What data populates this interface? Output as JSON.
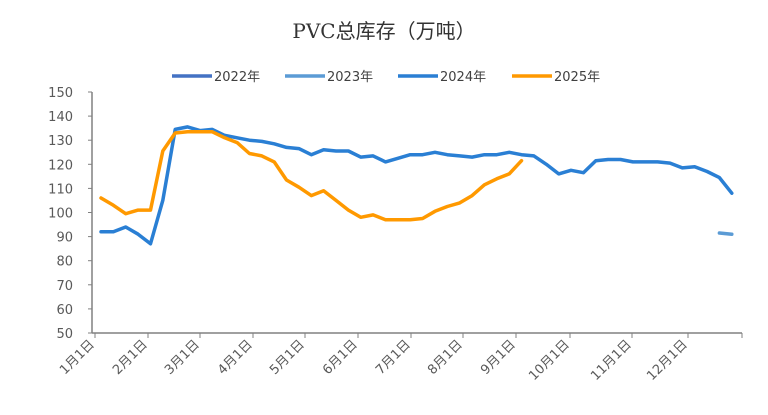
{
  "chart_data": {
    "type": "line",
    "title": "PVC总库存（万吨）",
    "xlabel": "",
    "ylabel": "",
    "ylim": [
      50,
      150
    ],
    "yticks": [
      50,
      60,
      70,
      80,
      90,
      100,
      110,
      120,
      130,
      140,
      150
    ],
    "xtick_labels": [
      "1月1日",
      "2月1日",
      "3月1日",
      "4月1日",
      "5月1日",
      "6月1日",
      "7月1日",
      "8月1日",
      "9月1日",
      "10月1日",
      "11月1日",
      "12月1日"
    ],
    "x_unit": "week of year (0-51)",
    "legend_position": "top",
    "grid": false,
    "series": [
      {
        "name": "2022年",
        "color": "#4472C4",
        "dashed": false,
        "start_week": 0,
        "values": []
      },
      {
        "name": "2023年",
        "color": "#5B9BD5",
        "dashed": true,
        "start_week": 50,
        "values": [
          91.5,
          91
        ]
      },
      {
        "name": "2024年",
        "color": "#2A7FD4",
        "dashed": false,
        "start_week": 0,
        "values": [
          92,
          92,
          94,
          91,
          87,
          105,
          134.5,
          135.5,
          134,
          134.5,
          132,
          131,
          130,
          129.5,
          128.5,
          127,
          126.5,
          124,
          126,
          125.5,
          125.5,
          123,
          123.5,
          121,
          122.5,
          124,
          124,
          125,
          124,
          123.5,
          123,
          124,
          124,
          125,
          124,
          123.5,
          120,
          116,
          117.5,
          116.5,
          121.5,
          122,
          122,
          121,
          121,
          121,
          120.5,
          118.5,
          119,
          117,
          114.5,
          108
        ]
      },
      {
        "name": "2025年",
        "color": "#FF9900",
        "dashed": false,
        "start_week": 0,
        "values": [
          106,
          103,
          99.5,
          101,
          101,
          125.5,
          133,
          133.5,
          133.5,
          133.5,
          131,
          129,
          124.5,
          123.5,
          121,
          113.5,
          110.5,
          107,
          109,
          105,
          101,
          98,
          99,
          97,
          97,
          97,
          97.5,
          100.5,
          102.5,
          104,
          107,
          111.5,
          114,
          116,
          121.5
        ]
      }
    ]
  }
}
